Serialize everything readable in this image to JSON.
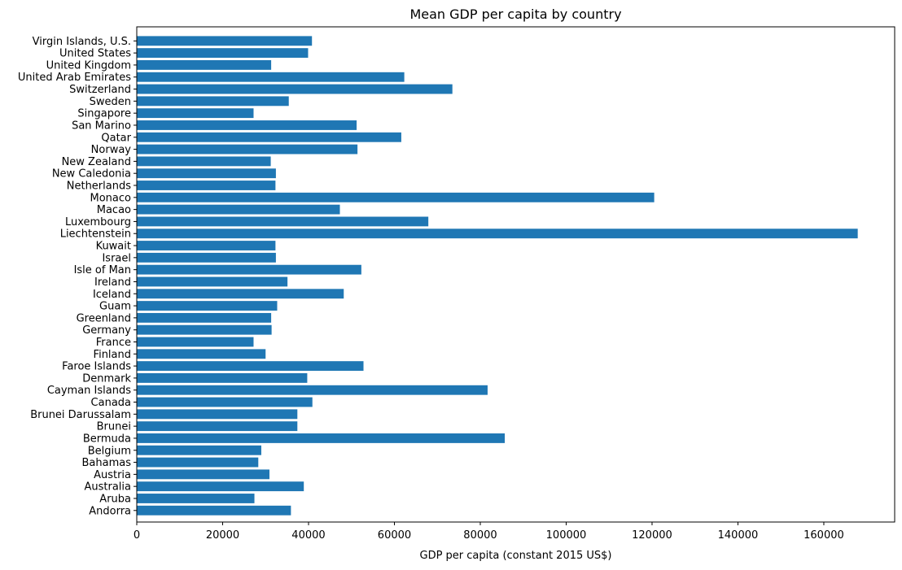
{
  "chart_data": {
    "type": "bar",
    "orientation": "horizontal",
    "title": "Mean GDP per capita by country",
    "xlabel": "GDP per capita (constant 2015 US$)",
    "ylabel": "",
    "xlim": [
      0,
      176500
    ],
    "xticks": [
      0,
      20000,
      40000,
      60000,
      80000,
      100000,
      120000,
      140000,
      160000
    ],
    "grid": false,
    "bar_color": "#1f77b4",
    "categories": [
      "Andorra",
      "Aruba",
      "Australia",
      "Austria",
      "Bahamas",
      "Belgium",
      "Bermuda",
      "Brunei",
      "Brunei Darussalam",
      "Canada",
      "Cayman Islands",
      "Denmark",
      "Faroe Islands",
      "Finland",
      "France",
      "Germany",
      "Greenland",
      "Guam",
      "Iceland",
      "Ireland",
      "Isle of Man",
      "Israel",
      "Kuwait",
      "Liechtenstein",
      "Luxembourg",
      "Macao",
      "Monaco",
      "Netherlands",
      "New Caledonia",
      "New Zealand",
      "Norway",
      "Qatar",
      "San Marino",
      "Singapore",
      "Sweden",
      "Switzerland",
      "United Arab Emirates",
      "United Kingdom",
      "United States",
      "Virgin Islands, U.S."
    ],
    "values": [
      35900,
      27400,
      38900,
      30900,
      28300,
      29000,
      85700,
      37400,
      37400,
      40900,
      81700,
      39700,
      52800,
      30000,
      27200,
      31400,
      31300,
      32700,
      48200,
      35100,
      52300,
      32400,
      32300,
      167900,
      67900,
      47300,
      120500,
      32300,
      32400,
      31200,
      51400,
      61600,
      51200,
      27200,
      35400,
      73500,
      62300,
      31300,
      39900,
      40800
    ]
  }
}
